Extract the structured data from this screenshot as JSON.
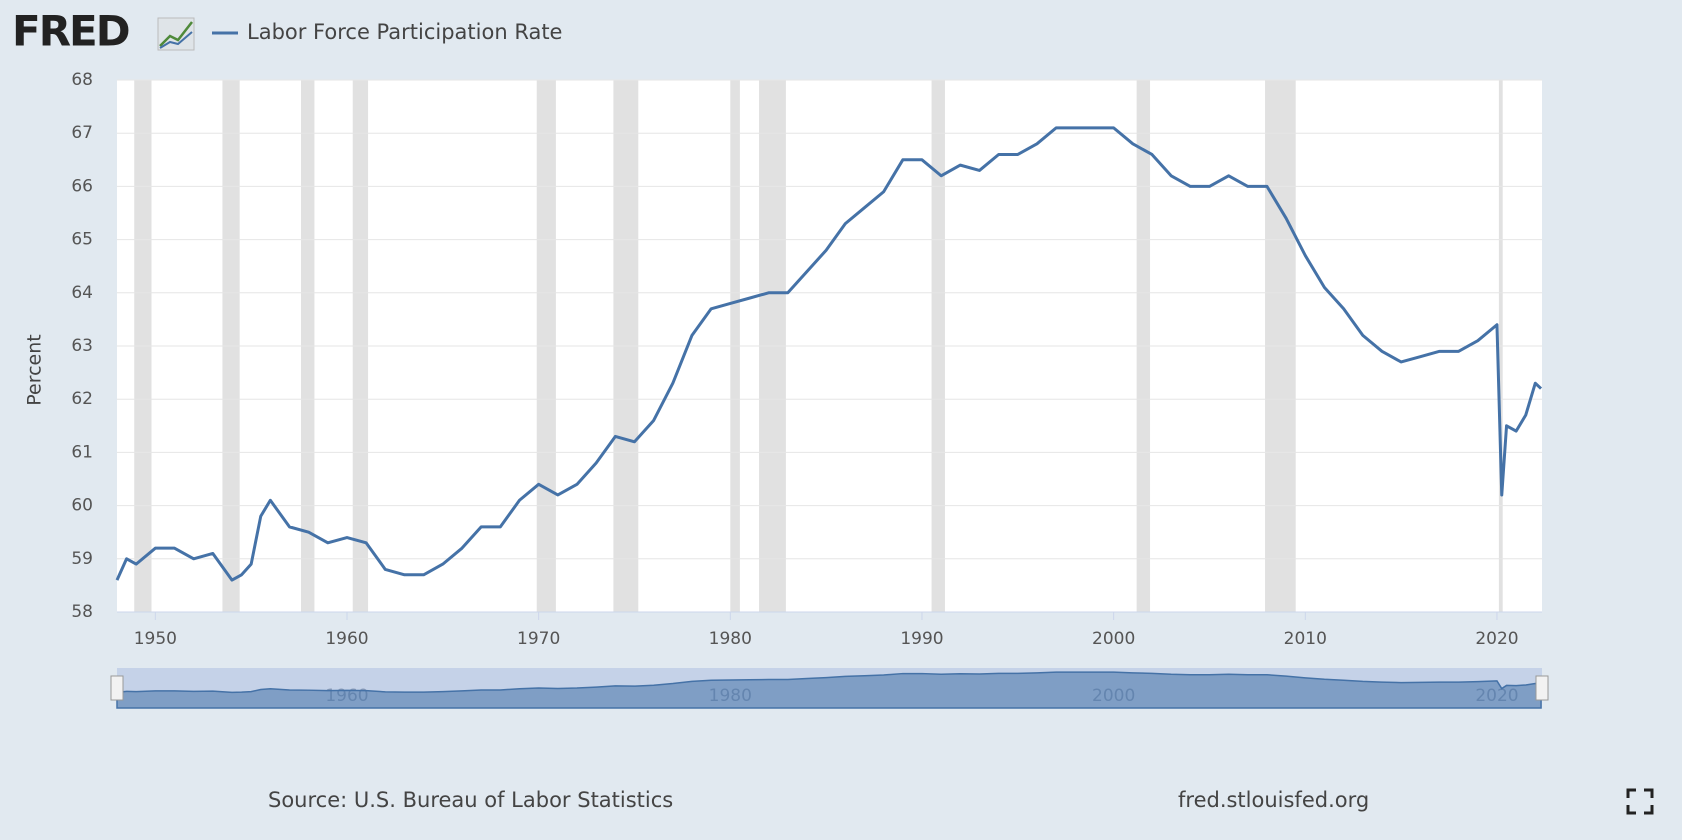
{
  "logo": "FRED",
  "chart_data": {
    "type": "line",
    "title": "Labor Force Participation Rate",
    "y_label": "Percent",
    "source": "Source: U.S. Bureau of Labor Statistics",
    "site": "fred.stlouisfed.org",
    "xlim": [
      1948,
      2022.35
    ],
    "xticks": [
      1950,
      1960,
      1970,
      1980,
      1990,
      2000,
      2010,
      2020
    ],
    "ylim": [
      58,
      68
    ],
    "yticks": [
      58,
      59,
      60,
      61,
      62,
      63,
      64,
      65,
      66,
      67,
      68
    ],
    "grid": true,
    "recessions": [
      [
        1948.9,
        1949.8
      ],
      [
        1953.5,
        1954.4
      ],
      [
        1957.6,
        1958.3
      ],
      [
        1960.3,
        1961.1
      ],
      [
        1969.9,
        1970.9
      ],
      [
        1973.9,
        1975.2
      ],
      [
        1980.0,
        1980.5
      ],
      [
        1981.5,
        1982.9
      ],
      [
        1990.5,
        1991.2
      ],
      [
        2001.2,
        2001.9
      ],
      [
        2007.9,
        2009.5
      ],
      [
        2020.1,
        2020.3
      ]
    ],
    "recession_color": "#e1e1e1",
    "navigator_xticks": [
      1960,
      1980,
      2000,
      2020
    ],
    "series": [
      {
        "name": "Labor Force Participation Rate",
        "color": "#4572a7",
        "x": [
          1948,
          1948.5,
          1949,
          1950,
          1951,
          1952,
          1953,
          1954,
          1954.5,
          1955,
          1955.5,
          1956,
          1957,
          1958,
          1959,
          1960,
          1961,
          1962,
          1963,
          1964,
          1965,
          1966,
          1967,
          1968,
          1969,
          1970,
          1971,
          1972,
          1973,
          1974,
          1975,
          1976,
          1977,
          1978,
          1979,
          1980,
          1981,
          1982,
          1983,
          1984,
          1985,
          1986,
          1987,
          1988,
          1989,
          1990,
          1991,
          1992,
          1993,
          1994,
          1995,
          1996,
          1997,
          1998,
          1999,
          2000,
          2001,
          2002,
          2003,
          2004,
          2005,
          2006,
          2007,
          2008,
          2009,
          2010,
          2011,
          2012,
          2013,
          2014,
          2015,
          2016,
          2017,
          2018,
          2019,
          2020,
          2020.25,
          2020.5,
          2021,
          2021.5,
          2022,
          2022.3
        ],
        "values": [
          58.6,
          59.0,
          58.9,
          59.2,
          59.2,
          59.0,
          59.1,
          58.6,
          58.7,
          58.9,
          59.8,
          60.1,
          59.6,
          59.5,
          59.3,
          59.4,
          59.3,
          58.8,
          58.7,
          58.7,
          58.9,
          59.2,
          59.6,
          59.6,
          60.1,
          60.4,
          60.2,
          60.4,
          60.8,
          61.3,
          61.2,
          61.6,
          62.3,
          63.2,
          63.7,
          63.8,
          63.9,
          64.0,
          64.0,
          64.4,
          64.8,
          65.3,
          65.6,
          65.9,
          66.5,
          66.5,
          66.2,
          66.4,
          66.3,
          66.6,
          66.6,
          66.8,
          67.1,
          67.1,
          67.1,
          67.1,
          66.8,
          66.6,
          66.2,
          66.0,
          66.0,
          66.2,
          66.0,
          66.0,
          65.4,
          64.7,
          64.1,
          63.7,
          63.2,
          62.9,
          62.7,
          62.8,
          62.9,
          62.9,
          63.1,
          63.4,
          60.2,
          61.5,
          61.4,
          61.7,
          62.3,
          62.2
        ]
      }
    ]
  }
}
